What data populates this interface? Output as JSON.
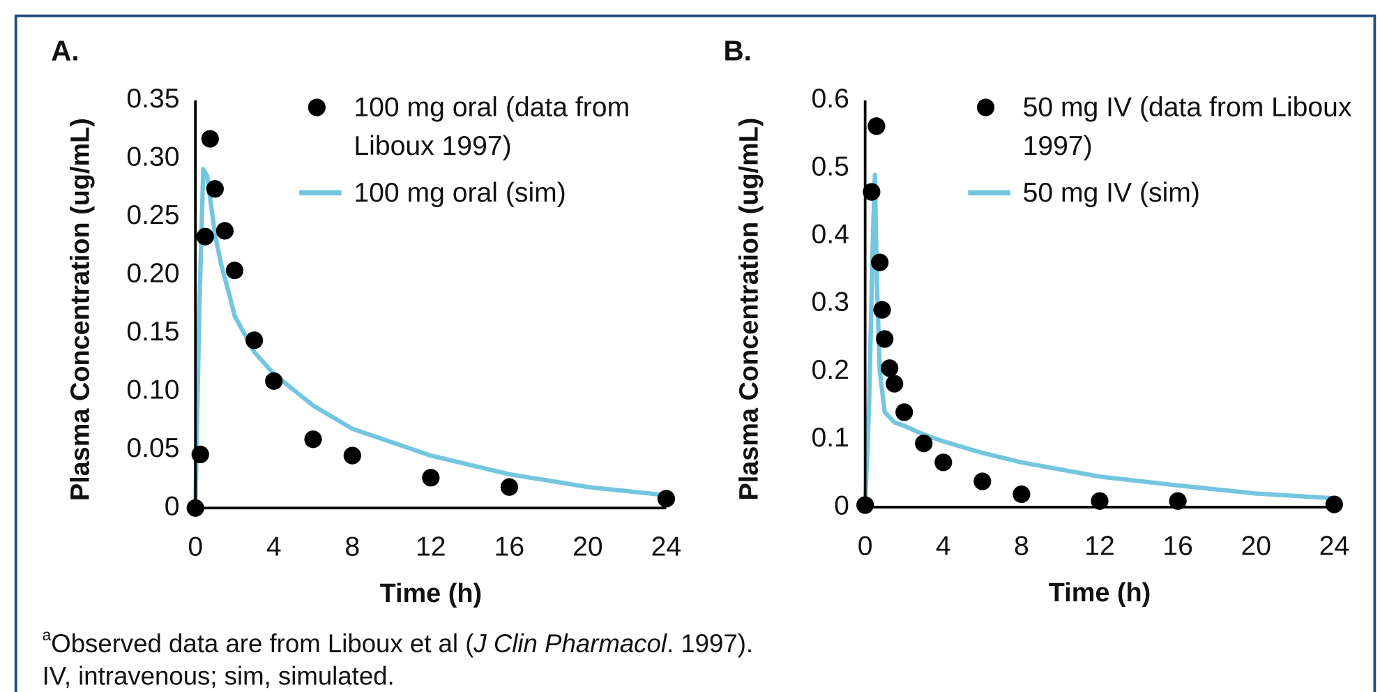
{
  "chart_data": [
    {
      "type": "scatter-line",
      "panel_label": "A.",
      "y_label": "Plasma Concentration (ug/mL)",
      "x_label": "Time (h)",
      "xlim": [
        0,
        24
      ],
      "xticks": [
        0,
        4,
        8,
        12,
        16,
        20,
        24
      ],
      "ylim": [
        0,
        0.35
      ],
      "yticks": [
        0,
        0.05,
        {
          "value": 0.1,
          "label": "0.10"
        },
        0.15,
        {
          "value": 0.2,
          "label": "0.20"
        },
        0.25,
        {
          "value": 0.3,
          "label": "0.30"
        },
        0.35
      ],
      "series": [
        {
          "name": "100 mg oral (data from Liboux 1997)",
          "type": "scatter",
          "color": "#000000",
          "x": [
            0,
            0.25,
            0.5,
            0.75,
            1,
            1.5,
            2,
            3,
            4,
            6,
            8,
            12,
            16,
            24
          ],
          "values": [
            0,
            0.046,
            0.233,
            0.317,
            0.274,
            0.238,
            0.204,
            0.144,
            0.109,
            0.059,
            0.045,
            0.026,
            0.018,
            0.008
          ]
        },
        {
          "name": "100 mg oral (sim)",
          "type": "line",
          "color": "#74c6df",
          "x": [
            0,
            0.2,
            0.4,
            0.6,
            0.8,
            1,
            1.3,
            1.7,
            2,
            3,
            4,
            6,
            8,
            12,
            16,
            20,
            24
          ],
          "values": [
            0,
            0.17,
            0.291,
            0.285,
            0.26,
            0.235,
            0.21,
            0.185,
            0.165,
            0.134,
            0.115,
            0.088,
            0.068,
            0.045,
            0.029,
            0.018,
            0.011
          ]
        }
      ]
    },
    {
      "type": "scatter-line",
      "panel_label": "B.",
      "y_label": "Plasma Concentration (ug/mL)",
      "x_label": "Time (h)",
      "xlim": [
        0,
        24
      ],
      "xticks": [
        0,
        4,
        8,
        12,
        16,
        20,
        24
      ],
      "ylim": [
        0,
        0.6
      ],
      "yticks": [
        0,
        0.1,
        0.2,
        0.3,
        0.4,
        0.5,
        0.6
      ],
      "series": [
        {
          "name": "50 mg IV (data from Liboux 1997)",
          "type": "scatter",
          "color": "#000000",
          "x": [
            0,
            0.33,
            0.58,
            0.75,
            0.87,
            1,
            1.25,
            1.5,
            2,
            3,
            4,
            6,
            8,
            12,
            16,
            24
          ],
          "values": [
            0.003,
            0.465,
            0.562,
            0.361,
            0.291,
            0.248,
            0.205,
            0.182,
            0.14,
            0.094,
            0.066,
            0.038,
            0.019,
            0.009,
            0.009,
            0.004
          ]
        },
        {
          "name": "50 mg IV (sim)",
          "type": "line",
          "color": "#74c6df",
          "x": [
            0,
            0.2,
            0.4,
            0.5,
            0.6,
            0.75,
            1,
            1.5,
            2,
            3,
            4,
            6,
            8,
            12,
            16,
            20,
            24
          ],
          "values": [
            0,
            0.15,
            0.4,
            0.49,
            0.33,
            0.2,
            0.14,
            0.125,
            0.12,
            0.107,
            0.097,
            0.08,
            0.066,
            0.045,
            0.032,
            0.02,
            0.013
          ]
        }
      ]
    }
  ],
  "footnote": {
    "line1": {
      "superscript": "a",
      "text": "Observed data are from Liboux et al (",
      "italic": "J Clin Pharmacol",
      "end": ". 1997)."
    },
    "line2": "IV, intravenous; sim, simulated."
  }
}
